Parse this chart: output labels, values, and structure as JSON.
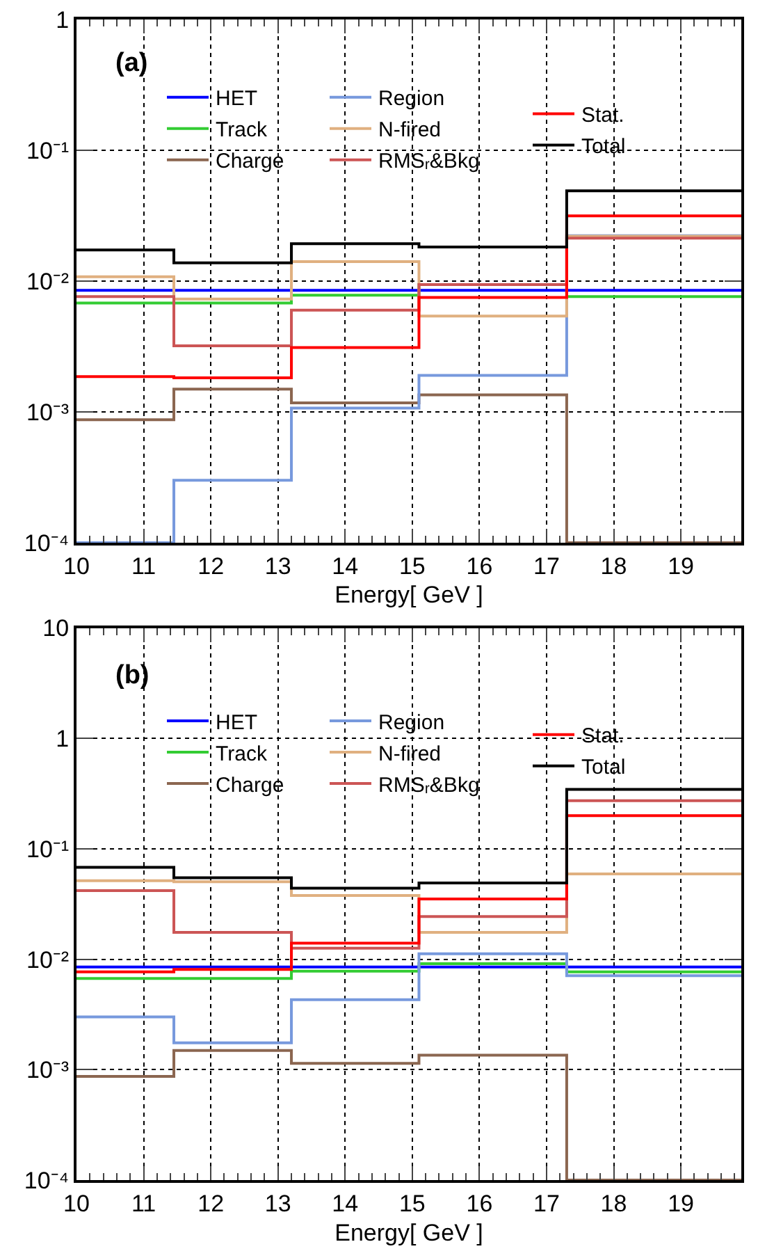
{
  "chart_data": [
    {
      "type": "histogram",
      "xlabel": "Energy[ GeV ]",
      "annotations": [
        "(a)"
      ],
      "log": "y",
      "grid": true,
      "legend": "top",
      "bins": [
        10,
        11.45,
        13.2,
        15.1,
        17.3,
        19.9
      ],
      "xlim": [
        10,
        19.9
      ],
      "xticks": [
        10,
        11,
        12,
        13,
        14,
        15,
        16,
        17,
        18,
        19
      ],
      "ylim": [
        0.0001,
        1
      ],
      "yticks": [
        {
          "value": 0.0001,
          "label": "10⁻⁴"
        },
        {
          "value": 0.001,
          "label": "10⁻³"
        },
        {
          "value": 0.01,
          "label": "10⁻²"
        },
        {
          "value": 0.1,
          "label": "10⁻¹"
        },
        1
      ],
      "series": [
        {
          "name": "HET",
          "color": "#0000ff",
          "values": [
            0.0085,
            0.0085,
            0.0085,
            0.0085,
            0.0085
          ]
        },
        {
          "name": "Track",
          "color": "#33cc33",
          "values": [
            0.0068,
            0.0068,
            0.0078,
            0.0094,
            0.0076
          ]
        },
        {
          "name": "Charge",
          "color": "#8b6650",
          "values": [
            0.00087,
            0.00149,
            0.00117,
            0.00135,
            0.0001
          ]
        },
        {
          "name": "Region",
          "color": "#7799dd",
          "values": [
            0.0001,
            0.0003,
            0.00107,
            0.0019,
            0.0222
          ]
        },
        {
          "name": "N-fired",
          "color": "#e0b080",
          "values": [
            0.0108,
            0.0073,
            0.0141,
            0.0054,
            0.022
          ]
        },
        {
          "name": "RMSᵣ&Bkg",
          "color": "#cc5555",
          "values": [
            0.0076,
            0.0032,
            0.006,
            0.0094,
            0.0213
          ]
        },
        {
          "name": "Stat.",
          "color": "#ff0000",
          "values": [
            0.00186,
            0.00182,
            0.0031,
            0.0075,
            0.0315
          ]
        },
        {
          "name": "Total",
          "color": "#000000",
          "values": [
            0.0173,
            0.0138,
            0.0193,
            0.0182,
            0.049
          ]
        }
      ]
    },
    {
      "type": "histogram",
      "xlabel": "Energy[ GeV ]",
      "annotations": [
        "(b)"
      ],
      "log": "y",
      "grid": true,
      "legend": "top",
      "bins": [
        10,
        11.45,
        13.2,
        15.1,
        17.3,
        19.9
      ],
      "xlim": [
        10,
        19.9
      ],
      "xticks": [
        10,
        11,
        12,
        13,
        14,
        15,
        16,
        17,
        18,
        19
      ],
      "ylim": [
        0.0001,
        10
      ],
      "yticks": [
        {
          "value": 0.0001,
          "label": "10⁻⁴"
        },
        {
          "value": 0.001,
          "label": "10⁻³"
        },
        {
          "value": 0.01,
          "label": "10⁻²"
        },
        {
          "value": 0.1,
          "label": "10⁻¹"
        },
        1,
        10
      ],
      "series": [
        {
          "name": "HET",
          "color": "#0000ff",
          "values": [
            0.0085,
            0.0085,
            0.0085,
            0.0085,
            0.0085
          ]
        },
        {
          "name": "Track",
          "color": "#33cc33",
          "values": [
            0.0067,
            0.0067,
            0.0078,
            0.0091,
            0.0077
          ]
        },
        {
          "name": "Charge",
          "color": "#8b6650",
          "values": [
            0.00087,
            0.00149,
            0.00114,
            0.00135,
            0.0001
          ]
        },
        {
          "name": "Region",
          "color": "#7799dd",
          "values": [
            0.003,
            0.00175,
            0.0043,
            0.0112,
            0.0071
          ]
        },
        {
          "name": "N-fired",
          "color": "#e0b080",
          "values": [
            0.0514,
            0.0504,
            0.0378,
            0.0175,
            0.0593
          ]
        },
        {
          "name": "RMSᵣ&Bkg",
          "color": "#cc5555",
          "values": [
            0.0419,
            0.0175,
            0.0126,
            0.0244,
            0.273
          ]
        },
        {
          "name": "Stat.",
          "color": "#ff0000",
          "values": [
            0.0077,
            0.0081,
            0.014,
            0.0352,
            0.2
          ]
        },
        {
          "name": "Total",
          "color": "#000000",
          "values": [
            0.068,
            0.0547,
            0.044,
            0.049,
            0.345
          ]
        }
      ]
    }
  ]
}
